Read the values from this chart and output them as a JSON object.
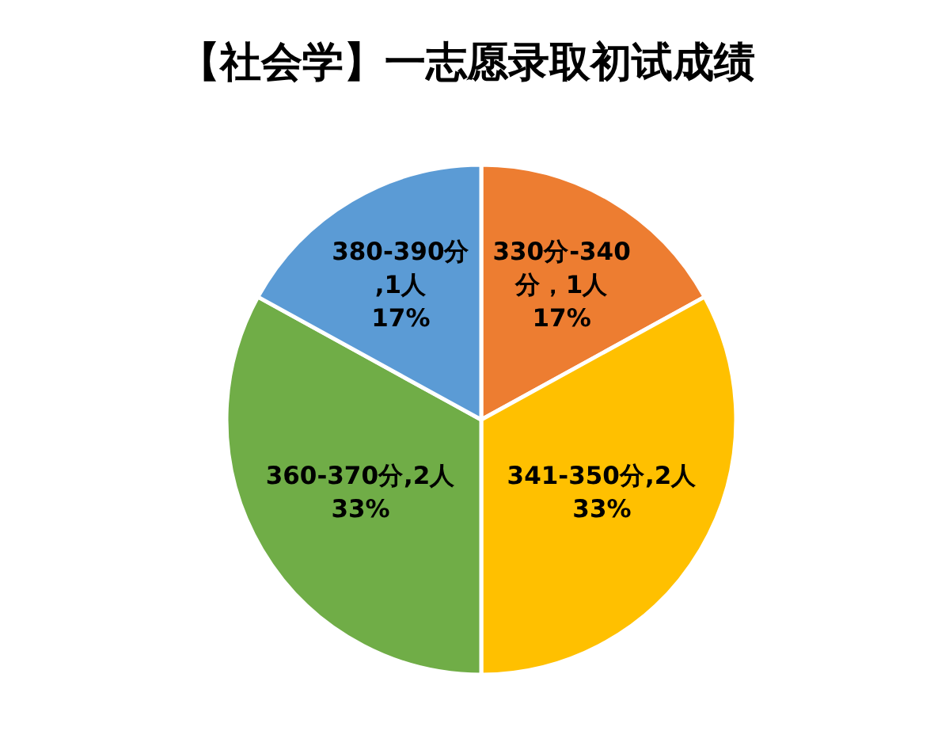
{
  "chart_data": {
    "type": "pie",
    "title": "【社会学】一志愿录取初试成绩",
    "categories": [
      "330分-340分，1人",
      "341-350分,2人",
      "360-370分,2人",
      "380-390分,1人"
    ],
    "values": [
      17,
      33,
      33,
      17
    ],
    "colors": [
      "#ed7d31",
      "#ffc000",
      "#70ad47",
      "#5b9bd5"
    ],
    "value_labels": [
      "17%",
      "33%",
      "33%",
      "17%"
    ]
  }
}
